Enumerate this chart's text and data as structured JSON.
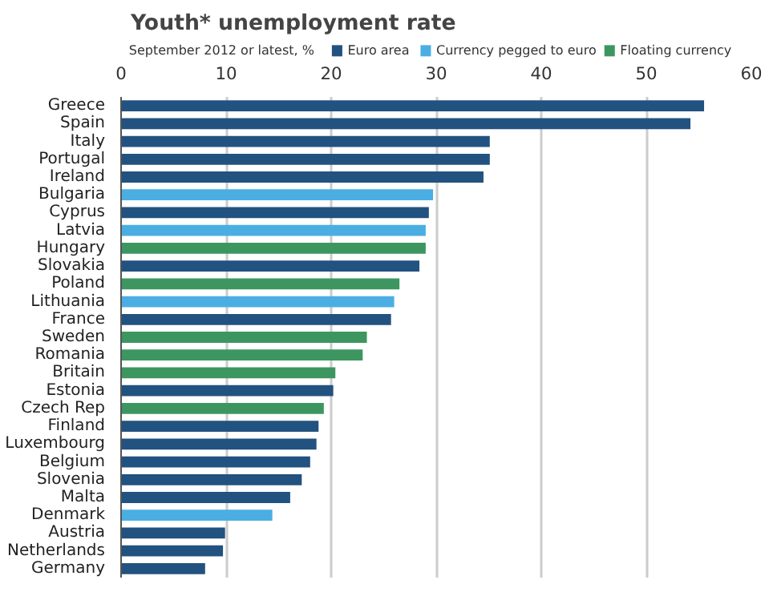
{
  "chart_data": {
    "type": "bar",
    "orientation": "horizontal",
    "title": "Youth* unemployment rate",
    "subtitle": "September 2012 or latest, %",
    "categories": [
      "Greece",
      "Spain",
      "Italy",
      "Portugal",
      "Ireland",
      "Bulgaria",
      "Cyprus",
      "Latvia",
      "Hungary",
      "Slovakia",
      "Poland",
      "Lithuania",
      "France",
      "Sweden",
      "Romania",
      "Britain",
      "Estonia",
      "Czech Rep",
      "Finland",
      "Luxembourg",
      "Belgium",
      "Slovenia",
      "Malta",
      "Denmark",
      "Austria",
      "Netherlands",
      "Germany"
    ],
    "series": [
      {
        "name": "Euro area",
        "color": "#22527f",
        "values": [
          55.5,
          54.2,
          35.1,
          35.1,
          34.5,
          null,
          29.3,
          null,
          null,
          28.4,
          null,
          null,
          25.7,
          null,
          null,
          null,
          20.2,
          null,
          18.8,
          18.6,
          18.0,
          17.2,
          16.1,
          null,
          9.9,
          9.7,
          8.0
        ]
      },
      {
        "name": "Currency pegged to euro",
        "color": "#4aaee3",
        "values": [
          null,
          null,
          null,
          null,
          null,
          29.7,
          null,
          29.0,
          null,
          null,
          null,
          26.0,
          null,
          null,
          null,
          null,
          null,
          null,
          null,
          null,
          null,
          null,
          null,
          14.4,
          null,
          null,
          null
        ]
      },
      {
        "name": "Floating currency",
        "color": "#3d9660",
        "values": [
          null,
          null,
          null,
          null,
          null,
          null,
          null,
          null,
          29.0,
          null,
          26.5,
          null,
          null,
          23.4,
          23.0,
          20.4,
          null,
          19.3,
          null,
          null,
          null,
          null,
          null,
          null,
          null,
          null,
          null
        ]
      }
    ],
    "xlim": [
      0,
      60
    ],
    "xticks": [
      0,
      10,
      20,
      30,
      40,
      50,
      60
    ],
    "grid": "x",
    "legend": "top right"
  }
}
